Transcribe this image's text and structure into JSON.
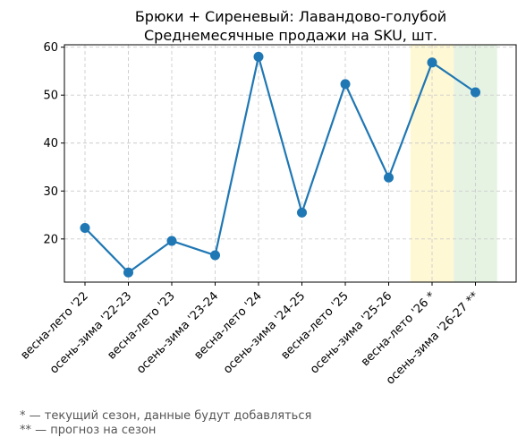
{
  "chart_data": {
    "type": "line",
    "title": "Брюки + Сиреневый: Лавандово-голубой",
    "subtitle": "Среднемесячные продажи на SKU, шт.",
    "xlabel": "",
    "ylabel": "",
    "categories": [
      "весна-лето '22",
      "осень-зима '22-23",
      "весна-лето '23",
      "осень-зима '23-24",
      "весна-лето '24",
      "осень-зима '24-25",
      "весна-лето '25",
      "осень-зима '25-26",
      "весна-лето '26 *",
      "осень-зима '26-27 **"
    ],
    "series": [
      {
        "values": [
          22.3,
          13.0,
          19.6,
          16.6,
          58.0,
          25.5,
          52.3,
          32.8,
          56.8,
          50.6
        ]
      }
    ],
    "ylim": [
      11,
      60.5
    ],
    "yticks": [
      20,
      30,
      40,
      50,
      60
    ],
    "grid": true,
    "line_color": "#1f77b4",
    "highlight_current_color": "#fff3b0",
    "highlight_forecast_color": "#d5ebd0",
    "highlight_current_index": 8,
    "highlight_forecast_index": 9
  },
  "footnotes": {
    "current": "* — текущий сезон, данные будут добавляться",
    "forecast": "** — прогноз на сезон"
  }
}
